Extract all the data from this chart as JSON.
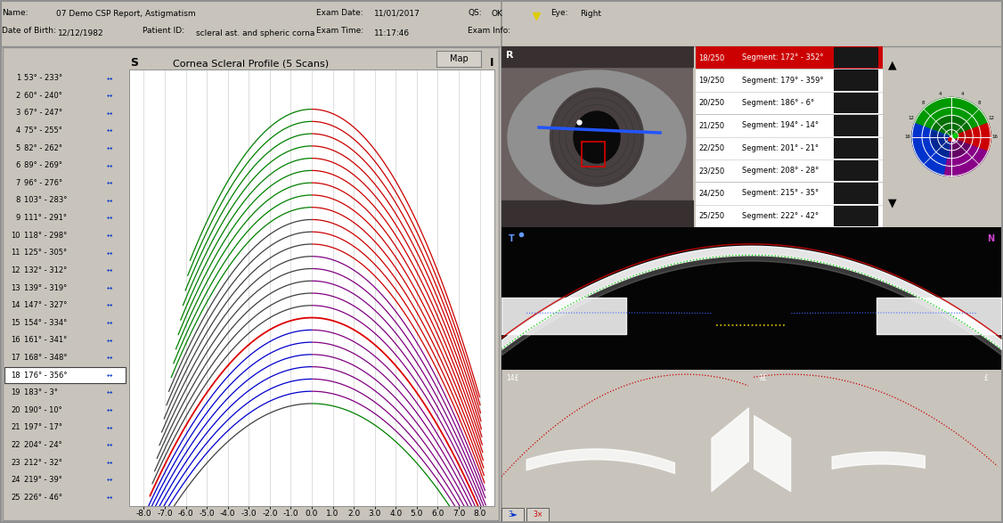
{
  "title": "Cornea Scleral Profile (5 Scans)",
  "header": {
    "name_label": "Name:",
    "name_value": "07 Demo CSP Report, Astigmatism",
    "dob_label": "Date of Birth:",
    "dob_value": "12/12/1982",
    "patient_id_label": "Patient ID:",
    "patient_id_value": "scleral ast. and spheric corna",
    "exam_date_label": "Exam Date:",
    "exam_date_value": "11/01/2017",
    "exam_time_label": "Exam Time:",
    "exam_time_value": "11:17:46",
    "qs_label": "QS:",
    "qs_value": "OK",
    "eye_label": "Eye:",
    "eye_value": "Right",
    "exam_info_label": "Exam Info:"
  },
  "scan_labels": [
    {
      "num": 1,
      "angles": "53° - 233°"
    },
    {
      "num": 2,
      "angles": "60° - 240°"
    },
    {
      "num": 3,
      "angles": "67° - 247°"
    },
    {
      "num": 4,
      "angles": "75° - 255°"
    },
    {
      "num": 5,
      "angles": "82° - 262°"
    },
    {
      "num": 6,
      "angles": "89° - 269°"
    },
    {
      "num": 7,
      "angles": "96° - 276°"
    },
    {
      "num": 8,
      "angles": "103° - 283°"
    },
    {
      "num": 9,
      "angles": "111° - 291°"
    },
    {
      "num": 10,
      "angles": "118° - 298°"
    },
    {
      "num": 11,
      "angles": "125° - 305°"
    },
    {
      "num": 12,
      "angles": "132° - 312°"
    },
    {
      "num": 13,
      "angles": "139° - 319°"
    },
    {
      "num": 14,
      "angles": "147° - 327°"
    },
    {
      "num": 15,
      "angles": "154° - 334°"
    },
    {
      "num": 16,
      "angles": "161° - 341°"
    },
    {
      "num": 17,
      "angles": "168° - 348°"
    },
    {
      "num": 18,
      "angles": "176° - 356°"
    },
    {
      "num": 19,
      "angles": "183° - 3°"
    },
    {
      "num": 20,
      "angles": "190° - 10°"
    },
    {
      "num": 21,
      "angles": "197° - 17°"
    },
    {
      "num": 22,
      "angles": "204° - 24°"
    },
    {
      "num": 23,
      "angles": "212° - 32°"
    },
    {
      "num": 24,
      "angles": "219° - 39°"
    },
    {
      "num": 25,
      "angles": "226° - 46°"
    }
  ],
  "selected_scan": 18,
  "right_panel_segments": [
    {
      "id": "18/250",
      "seg": "Segment: 172° - 352°"
    },
    {
      "id": "19/250",
      "seg": "Segment: 179° - 359°"
    },
    {
      "id": "20/250",
      "seg": "Segment: 186° - 6°"
    },
    {
      "id": "21/250",
      "seg": "Segment: 194° - 14°"
    },
    {
      "id": "22/250",
      "seg": "Segment: 201° - 21°"
    },
    {
      "id": "23/250",
      "seg": "Segment: 208° - 28°"
    },
    {
      "id": "24/250",
      "seg": "Segment: 215° - 35°"
    },
    {
      "id": "25/250",
      "seg": "Segment: 222° - 42°"
    }
  ],
  "colors": {
    "background": "#c8c4bc",
    "plot_bg": "#ffffff",
    "grid_line": "#d0d0d0",
    "right_panel_bg": "#000000"
  },
  "x_ticks": [
    -8.0,
    -7.0,
    -6.0,
    -5.0,
    -4.0,
    -3.0,
    -2.0,
    -1.0,
    0.0,
    1.0,
    2.0,
    3.0,
    4.0,
    5.0,
    6.0,
    7.0,
    8.0
  ]
}
